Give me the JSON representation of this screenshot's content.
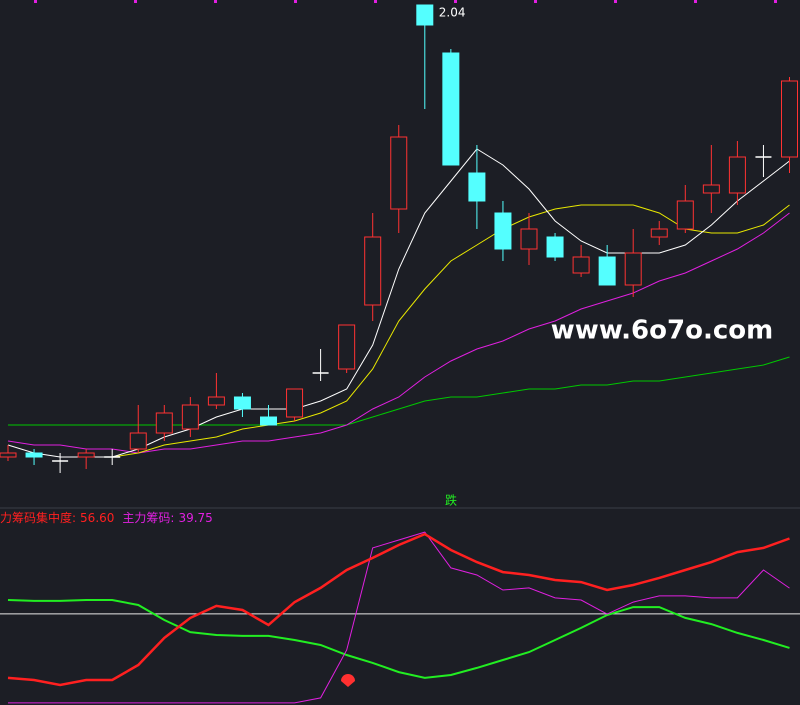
{
  "chart_data": [
    {
      "type": "candlestick",
      "watermark": "www.6o7o.com",
      "annotation": "跌",
      "open": [
        0.91,
        0.92,
        0.9,
        0.91,
        0.91,
        0.93,
        0.97,
        0.98,
        1.04,
        1.06,
        1.01,
        1.01,
        1.12,
        1.13,
        1.29,
        1.53,
        2.04,
        1.92,
        1.62,
        1.52,
        1.43,
        1.46,
        1.37,
        1.41,
        1.34,
        1.46,
        1.48,
        1.57,
        1.57,
        1.66,
        1.66
      ],
      "high": [
        0.94,
        0.93,
        0.92,
        0.93,
        0.93,
        1.04,
        1.04,
        1.06,
        1.12,
        1.07,
        1.04,
        1.08,
        1.18,
        1.24,
        1.52,
        1.74,
        2.04,
        1.93,
        1.69,
        1.55,
        1.52,
        1.47,
        1.44,
        1.44,
        1.48,
        1.5,
        1.59,
        1.69,
        1.7,
        1.69,
        1.86
      ],
      "low": [
        0.9,
        0.89,
        0.87,
        0.88,
        0.89,
        0.92,
        0.95,
        0.96,
        1.03,
        1.01,
        0.99,
        1.0,
        1.1,
        1.12,
        1.25,
        1.47,
        1.78,
        1.64,
        1.48,
        1.4,
        1.39,
        1.4,
        1.36,
        1.34,
        1.31,
        1.44,
        1.47,
        1.52,
        1.54,
        1.61,
        1.62
      ],
      "close": [
        0.92,
        0.91,
        0.9,
        0.92,
        0.91,
        0.97,
        1.02,
        1.04,
        1.06,
        1.03,
        0.99,
        1.08,
        1.12,
        1.24,
        1.46,
        1.71,
        1.99,
        1.64,
        1.55,
        1.43,
        1.48,
        1.41,
        1.41,
        1.34,
        1.42,
        1.48,
        1.55,
        1.59,
        1.66,
        1.66,
        1.85
      ],
      "up_color": "#ff3232",
      "down_color": "#54ffff",
      "flat_color": "#ffffff",
      "series": [
        {
          "color": "#00c800",
          "values": [
            0.99,
            0.99,
            0.99,
            0.99,
            0.99,
            0.99,
            0.99,
            0.99,
            0.99,
            0.99,
            0.99,
            0.99,
            0.99,
            0.99,
            1.01,
            1.03,
            1.05,
            1.06,
            1.06,
            1.07,
            1.08,
            1.08,
            1.09,
            1.09,
            1.1,
            1.1,
            1.11,
            1.12,
            1.13,
            1.14,
            1.16
          ]
        },
        {
          "color": "#e020e0",
          "values": [
            0.95,
            0.94,
            0.94,
            0.93,
            0.93,
            0.92,
            0.93,
            0.93,
            0.94,
            0.95,
            0.95,
            0.96,
            0.97,
            0.99,
            1.03,
            1.06,
            1.11,
            1.15,
            1.18,
            1.2,
            1.23,
            1.25,
            1.28,
            1.3,
            1.32,
            1.35,
            1.37,
            1.4,
            1.43,
            1.47,
            1.52
          ]
        },
        {
          "color": "#e8e800",
          "values": [
            null,
            null,
            null,
            null,
            0.91,
            0.92,
            0.94,
            0.95,
            0.96,
            0.98,
            0.99,
            1.0,
            1.02,
            1.05,
            1.13,
            1.25,
            1.33,
            1.4,
            1.44,
            1.48,
            1.51,
            1.53,
            1.54,
            1.54,
            1.54,
            1.52,
            1.48,
            1.47,
            1.47,
            1.49,
            1.54
          ]
        },
        {
          "color": "#ffffff",
          "values": [
            0.94,
            0.92,
            0.91,
            0.91,
            0.91,
            0.93,
            0.96,
            0.98,
            1.01,
            1.03,
            1.03,
            1.03,
            1.05,
            1.08,
            1.19,
            1.38,
            1.52,
            1.6,
            1.68,
            1.64,
            1.58,
            1.5,
            1.45,
            1.42,
            1.42,
            1.42,
            1.44,
            1.49,
            1.55,
            1.6,
            1.65
          ]
        }
      ],
      "ylim": [
        0.8275,
        2.0525
      ]
    },
    {
      "type": "line",
      "series": [
        {
          "color": "#22ee22",
          "values": [
            35.7,
            35.4,
            35.4,
            35.7,
            35.7,
            34.0,
            28.9,
            24.8,
            23.8,
            23.5,
            23.5,
            22.1,
            20.4,
            17.0,
            14.3,
            11.2,
            9.2,
            10.2,
            12.6,
            15.3,
            18.0,
            22.1,
            26.2,
            30.6,
            33.3,
            33.3,
            29.6,
            27.5,
            24.5,
            22.1,
            19.4
          ]
        },
        {
          "name": "主力筹码:",
          "color": "#e020e0",
          "values": [
            0.7,
            0.7,
            0.7,
            0.7,
            0.7,
            0.7,
            0.7,
            0.7,
            0.7,
            0.7,
            0.7,
            0.7,
            2.4,
            18.7,
            53.4,
            56.1,
            58.8,
            46.6,
            44.2,
            39.1,
            39.8,
            36.4,
            35.7,
            30.9,
            35.0,
            37.1,
            37.1,
            36.4,
            36.4,
            45.9,
            39.75
          ],
          "value_labels": [
            null,
            null,
            null,
            null,
            null,
            null,
            null,
            null,
            null,
            null,
            null,
            null,
            null,
            null,
            null,
            null,
            null,
            null,
            null,
            null,
            null,
            null,
            null,
            null,
            null,
            null,
            null,
            null,
            null,
            null,
            "39.75"
          ]
        },
        {
          "name": "力筹码集中度:",
          "color": "#ff2020",
          "values": [
            9.2,
            8.5,
            6.8,
            8.5,
            8.5,
            13.6,
            22.8,
            29.6,
            33.7,
            32.3,
            27.2,
            35.0,
            39.8,
            45.9,
            50.0,
            54.4,
            58.1,
            52.7,
            48.6,
            45.2,
            44.2,
            42.5,
            41.8,
            39.1,
            40.8,
            43.2,
            45.9,
            48.6,
            52.0,
            53.4,
            56.6
          ],
          "value_labels": [
            null,
            null,
            null,
            null,
            null,
            null,
            null,
            null,
            null,
            null,
            null,
            null,
            null,
            null,
            null,
            null,
            null,
            null,
            null,
            null,
            null,
            null,
            null,
            null,
            null,
            null,
            null,
            null,
            null,
            null,
            "56.60"
          ]
        }
      ],
      "reference_line": 31,
      "ylim": [
        0,
        68
      ]
    }
  ]
}
